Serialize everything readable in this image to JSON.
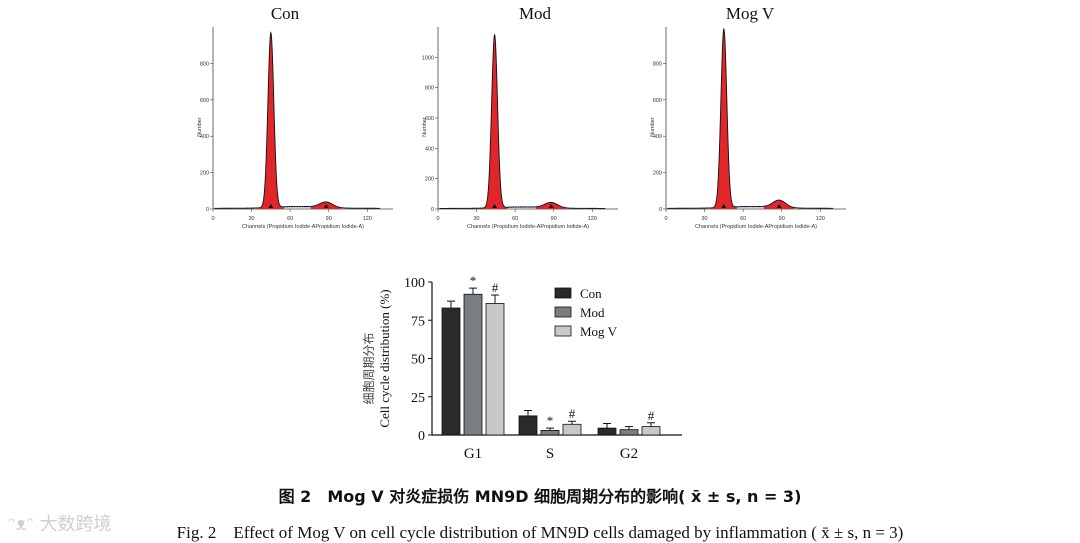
{
  "chart_data": [
    {
      "type": "histogram",
      "title": "Con",
      "xlabel": "Channels (Propidium Iodide-APropidium Iodide-A)",
      "ylabel": "Number",
      "x_ticks": [
        "0",
        "30",
        "60",
        "90",
        "120"
      ],
      "y_ticks": [
        "0",
        "200",
        "400",
        "600",
        "800"
      ],
      "xlim": [
        0,
        140
      ],
      "ylim": [
        0,
        1000
      ],
      "peaks": [
        {
          "center": 45,
          "height": 960
        },
        {
          "center": 88,
          "height": 30
        }
      ]
    },
    {
      "type": "histogram",
      "title": "Mod",
      "xlabel": "Channels (Propidium Iodide-APropidium Iodide-A)",
      "ylabel": "Number",
      "x_ticks": [
        "0",
        "30",
        "60",
        "90",
        "120"
      ],
      "y_ticks": [
        "0",
        "200",
        "400",
        "600",
        "800",
        "1000"
      ],
      "xlim": [
        0,
        140
      ],
      "ylim": [
        0,
        1200
      ],
      "peaks": [
        {
          "center": 44,
          "height": 1140
        },
        {
          "center": 88,
          "height": 35
        }
      ]
    },
    {
      "type": "histogram",
      "title": "Mog V",
      "xlabel": "Channels (Propidium Iodide-APropidium Iodide-A)",
      "ylabel": "Number",
      "x_ticks": [
        "0",
        "30",
        "60",
        "90",
        "120"
      ],
      "y_ticks": [
        "0",
        "200",
        "400",
        "600",
        "800"
      ],
      "xlim": [
        0,
        140
      ],
      "ylim": [
        0,
        1000
      ],
      "peaks": [
        {
          "center": 45,
          "height": 980
        },
        {
          "center": 88,
          "height": 40
        }
      ]
    },
    {
      "type": "bar",
      "categories": [
        "G1",
        "S",
        "G2"
      ],
      "series": [
        {
          "name": "Con",
          "color": "#2a2a2a",
          "values": [
            83,
            12.5,
            4.5
          ],
          "errors": [
            4.5,
            3.5,
            3
          ]
        },
        {
          "name": "Mod",
          "color": "#7a7d82",
          "values": [
            92,
            3,
            3.5
          ],
          "errors": [
            4,
            1.5,
            2
          ]
        },
        {
          "name": "Mog V",
          "color": "#c8c8c8",
          "values": [
            86,
            7,
            5.5
          ],
          "errors": [
            5.5,
            2,
            2.5
          ]
        }
      ],
      "markers": [
        [
          "",
          "",
          ""
        ],
        [
          "*",
          "*",
          ""
        ],
        [
          "#",
          "#",
          "#"
        ]
      ],
      "ylabel": "Cell cycle distribution (%)",
      "ylabel_cn": "细胞周期分布",
      "y_ticks": [
        "0",
        "25",
        "50",
        "75",
        "100"
      ],
      "ylim": [
        0,
        100
      ],
      "legend": "top-right"
    }
  ],
  "caption_cn": "图 2　Mog V 对炎症损伤 MN9D 细胞周期分布的影响( x̄ ± s, n = 3)",
  "caption_en": "Fig. 2　Effect of Mog V on cell cycle distribution of MN9D cells damaged by inflammation ( x̄ ± s, n = 3)",
  "watermark": "大数跨境"
}
